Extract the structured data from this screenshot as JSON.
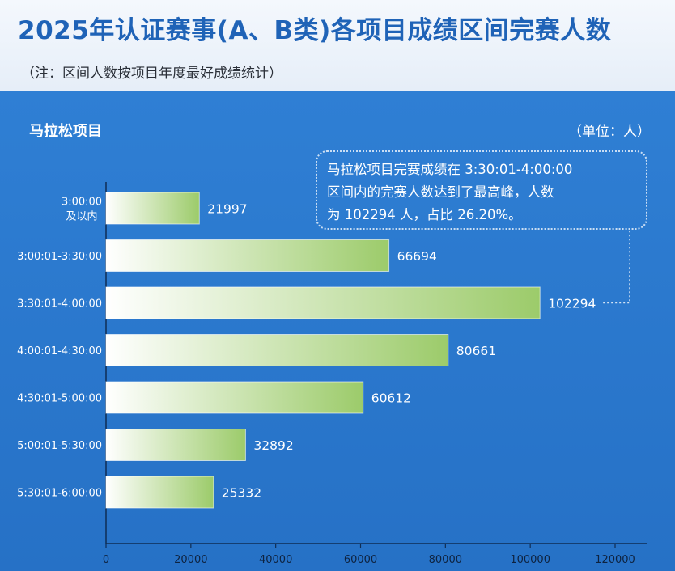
{
  "header": {
    "title": "2025年认证赛事(A、B类)各项目成绩区间完赛人数",
    "subtitle": "（注：区间人数按项目年度最好成绩统计）"
  },
  "panel": {
    "title": "马拉松项目",
    "unit": "（单位：人）"
  },
  "callout": {
    "lines": [
      "马拉松项目完赛成绩在 3:30:01-4:00:00",
      "区间内的完赛人数达到了最高峰，人数",
      "为 102294 人，占比 26.20%。"
    ]
  },
  "colors": {
    "title": "#1f63b7",
    "panel": "#2b79cf",
    "bar_start": "#ffffff",
    "bar_end": "#9ccb6a"
  },
  "chart_data": {
    "type": "bar",
    "orientation": "horizontal",
    "categories": [
      "3:00:00 及以内",
      "3:00:01-3:30:00",
      "3:30:01-4:00:00",
      "4:00:01-4:30:00",
      "4:30:01-5:00:00",
      "5:00:01-5:30:00",
      "5:30:01-6:00:00"
    ],
    "category_label_lines": [
      [
        "3:00:00",
        "及以内"
      ],
      [
        "3:00:01-3:30:00"
      ],
      [
        "3:30:01-4:00:00"
      ],
      [
        "4:00:01-4:30:00"
      ],
      [
        "4:30:01-5:00:00"
      ],
      [
        "5:00:01-5:30:00"
      ],
      [
        "5:30:01-6:00:00"
      ]
    ],
    "values": [
      21997,
      66694,
      102294,
      80661,
      60612,
      32892,
      25332
    ],
    "xlim": [
      0,
      120000
    ],
    "xticks": [
      0,
      20000,
      40000,
      60000,
      80000,
      100000,
      120000
    ],
    "grid": false,
    "highlight_category": "3:30:01-4:00:00"
  }
}
